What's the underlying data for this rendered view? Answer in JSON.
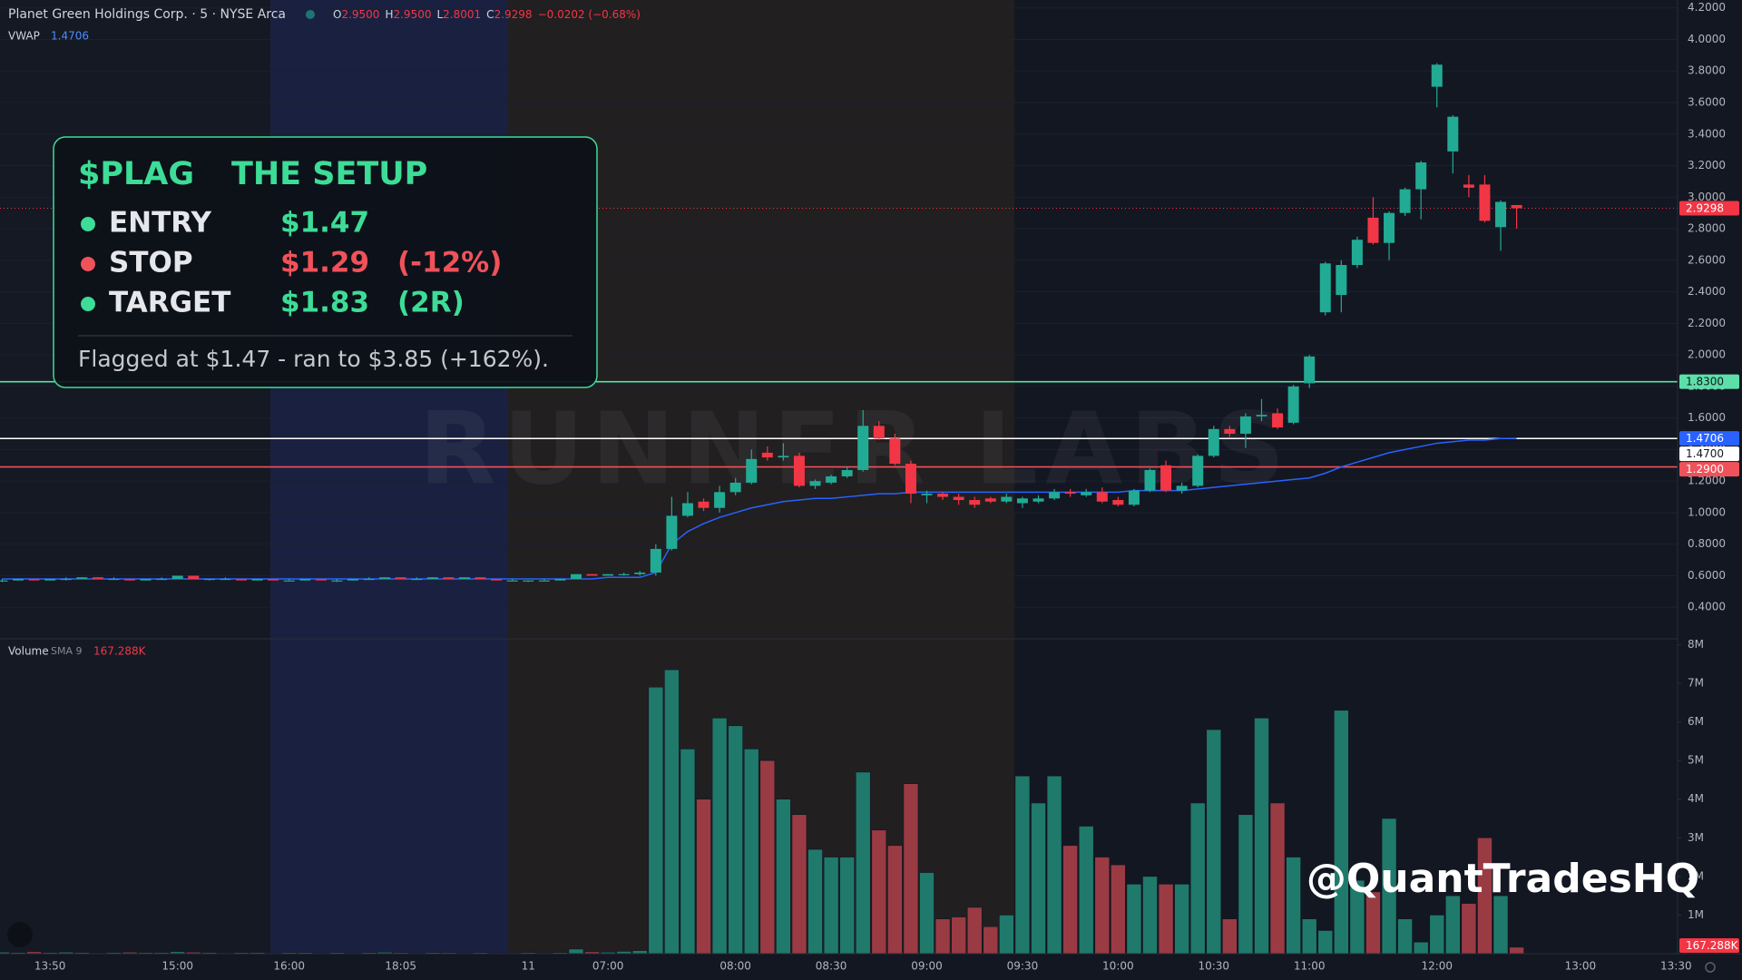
{
  "header": {
    "title": "Planet Green Holdings Corp. · 5 · NYSE Arca",
    "ohlc": [
      {
        "key": "O",
        "value": "2.9500"
      },
      {
        "key": "H",
        "value": "2.9500"
      },
      {
        "key": "L",
        "value": "2.8001"
      },
      {
        "key": "C",
        "value": "2.9298"
      }
    ],
    "change": "−0.0202 (−0.68%)"
  },
  "overlay": {
    "title": "$PLAG",
    "subtitle": "THE SETUP",
    "rows": [
      {
        "label": "ENTRY",
        "value": "$1.47",
        "color": "#3ddc97"
      },
      {
        "label": "STOP",
        "value": "$1.29",
        "note": "(-12%)",
        "color": "#f0525a"
      },
      {
        "label": "TARGET",
        "value": "$1.83",
        "note": "(2R)",
        "color": "#3ddc97"
      }
    ],
    "footer": "Flagged at $1.47 - ran to $3.85 (+162%)."
  },
  "watermark": "RUNNER LABS",
  "handle": "@QuantTradesHQ",
  "chart_data": [
    {
      "type": "candlestick",
      "up_color": "#22ab94",
      "down_color": "#f23645",
      "categories": [
        null,
        null,
        null,
        "13:50",
        null,
        null,
        null,
        null,
        null,
        null,
        null,
        "15:00",
        null,
        null,
        null,
        null,
        null,
        null,
        "16:00",
        null,
        null,
        null,
        null,
        null,
        null,
        "18:05",
        null,
        null,
        null,
        null,
        null,
        null,
        null,
        "11",
        null,
        null,
        null,
        null,
        "07:00",
        null,
        null,
        null,
        null,
        null,
        null,
        null,
        "08:00",
        null,
        null,
        null,
        null,
        null,
        "08:30",
        null,
        null,
        null,
        null,
        null,
        "09:00",
        null,
        null,
        null,
        null,
        null,
        "09:30",
        null,
        null,
        null,
        null,
        null,
        "10:00",
        null,
        null,
        null,
        null,
        null,
        "10:30",
        null,
        null,
        null,
        null,
        null,
        "11:00",
        null,
        null,
        null,
        null,
        null,
        null,
        null,
        "12:00",
        null,
        null,
        null,
        null,
        null,
        null,
        null,
        null,
        "13:00",
        null,
        null,
        null,
        null,
        null,
        "13:30"
      ],
      "open": [
        0.57,
        0.57,
        0.58,
        0.57,
        0.58,
        0.58,
        0.59,
        0.58,
        0.58,
        0.57,
        0.58,
        0.58,
        0.6,
        0.58,
        0.58,
        0.58,
        0.57,
        0.58,
        0.57,
        0.57,
        0.58,
        0.57,
        0.57,
        0.58,
        0.58,
        0.59,
        0.58,
        0.58,
        0.59,
        0.58,
        0.59,
        0.58,
        0.57,
        0.57,
        0.57,
        0.57,
        0.58,
        0.61,
        0.6,
        0.61,
        0.61,
        0.62,
        0.77,
        0.98,
        1.07,
        1.03,
        1.13,
        1.19,
        1.38,
        1.35,
        1.36,
        1.17,
        1.19,
        1.23,
        1.27,
        1.55,
        1.47,
        1.31,
        1.11,
        1.12,
        1.1,
        1.08,
        1.09,
        1.07,
        1.06,
        1.07,
        1.09,
        1.13,
        1.11,
        1.13,
        1.08,
        1.05,
        1.14,
        1.3,
        1.14,
        1.17,
        1.36,
        1.53,
        1.5,
        1.61,
        1.63,
        1.57,
        1.82,
        2.27,
        2.38,
        2.57,
        2.87,
        2.71,
        2.9,
        3.05,
        3.7,
        3.29,
        3.08,
        3.08,
        2.81,
        2.95,
        null,
        null,
        null,
        null,
        null,
        null,
        null,
        null,
        null,
        null
      ],
      "high": [
        0.58,
        0.58,
        0.58,
        0.58,
        0.59,
        0.59,
        0.59,
        0.59,
        0.58,
        0.58,
        0.59,
        0.6,
        0.6,
        0.58,
        0.59,
        0.58,
        0.58,
        0.58,
        0.58,
        0.58,
        0.58,
        0.58,
        0.58,
        0.59,
        0.59,
        0.59,
        0.59,
        0.59,
        0.59,
        0.59,
        0.59,
        0.58,
        0.58,
        0.57,
        0.58,
        0.58,
        0.61,
        0.61,
        0.61,
        0.62,
        0.63,
        0.8,
        1.1,
        1.13,
        1.09,
        1.17,
        1.22,
        1.4,
        1.42,
        1.44,
        1.38,
        1.21,
        1.24,
        1.29,
        1.65,
        1.58,
        1.5,
        1.33,
        1.14,
        1.13,
        1.12,
        1.1,
        1.1,
        1.12,
        1.1,
        1.11,
        1.15,
        1.15,
        1.15,
        1.16,
        1.1,
        1.15,
        1.28,
        1.33,
        1.19,
        1.37,
        1.55,
        1.55,
        1.63,
        1.72,
        1.66,
        1.81,
        2.0,
        2.59,
        2.6,
        2.75,
        3.0,
        2.91,
        3.06,
        3.23,
        3.85,
        3.52,
        3.14,
        3.14,
        2.98,
        2.95,
        null,
        null,
        null,
        null,
        null,
        null,
        null,
        null,
        null,
        null
      ],
      "low": [
        0.56,
        0.57,
        0.57,
        0.57,
        0.57,
        0.58,
        0.58,
        0.58,
        0.57,
        0.57,
        0.58,
        0.58,
        0.58,
        0.57,
        0.58,
        0.57,
        0.57,
        0.57,
        0.57,
        0.57,
        0.57,
        0.56,
        0.57,
        0.58,
        0.58,
        0.58,
        0.58,
        0.58,
        0.58,
        0.58,
        0.58,
        0.57,
        0.57,
        0.56,
        0.57,
        0.57,
        0.58,
        0.6,
        0.6,
        0.6,
        0.6,
        0.6,
        0.76,
        0.97,
        1.01,
        1.0,
        1.11,
        1.18,
        1.33,
        1.33,
        1.16,
        1.15,
        1.18,
        1.22,
        1.26,
        1.46,
        1.3,
        1.06,
        1.06,
        1.08,
        1.05,
        1.03,
        1.06,
        1.06,
        1.03,
        1.06,
        1.08,
        1.1,
        1.1,
        1.06,
        1.04,
        1.04,
        1.13,
        1.13,
        1.12,
        1.16,
        1.35,
        1.48,
        1.41,
        1.58,
        1.53,
        1.56,
        1.79,
        2.25,
        2.27,
        2.55,
        2.7,
        2.6,
        2.88,
        2.86,
        3.57,
        3.15,
        3.0,
        2.84,
        2.66,
        2.8001,
        null,
        null,
        null,
        null,
        null,
        null,
        null,
        null,
        null,
        null
      ],
      "close": [
        0.57,
        0.58,
        0.57,
        0.58,
        0.58,
        0.59,
        0.58,
        0.58,
        0.57,
        0.58,
        0.58,
        0.6,
        0.58,
        0.58,
        0.58,
        0.57,
        0.58,
        0.57,
        0.57,
        0.58,
        0.57,
        0.57,
        0.58,
        0.58,
        0.59,
        0.58,
        0.58,
        0.59,
        0.58,
        0.59,
        0.58,
        0.57,
        0.57,
        0.57,
        0.57,
        0.58,
        0.61,
        0.6,
        0.61,
        0.61,
        0.62,
        0.77,
        0.98,
        1.06,
        1.03,
        1.13,
        1.19,
        1.34,
        1.35,
        1.36,
        1.17,
        1.2,
        1.23,
        1.27,
        1.55,
        1.47,
        1.31,
        1.12,
        1.12,
        1.1,
        1.08,
        1.05,
        1.07,
        1.1,
        1.09,
        1.09,
        1.13,
        1.12,
        1.13,
        1.07,
        1.05,
        1.14,
        1.27,
        1.14,
        1.17,
        1.36,
        1.53,
        1.5,
        1.61,
        1.62,
        1.54,
        1.8,
        1.99,
        2.58,
        2.57,
        2.73,
        2.71,
        2.9,
        3.05,
        3.22,
        3.84,
        3.51,
        3.06,
        2.85,
        2.97,
        2.9298,
        null,
        null,
        null,
        null,
        null,
        null,
        null,
        null,
        null,
        null
      ],
      "vwap": {
        "name": "VWAP",
        "label": "1.4706",
        "color": "#2962ff",
        "values": [
          0.58,
          0.58,
          0.58,
          0.58,
          0.58,
          0.58,
          0.58,
          0.58,
          0.58,
          0.58,
          0.58,
          0.58,
          0.58,
          0.58,
          0.58,
          0.58,
          0.58,
          0.58,
          0.58,
          0.58,
          0.58,
          0.58,
          0.58,
          0.58,
          0.58,
          0.58,
          0.58,
          0.58,
          0.58,
          0.58,
          0.58,
          0.58,
          0.58,
          0.58,
          0.58,
          0.58,
          0.58,
          0.58,
          0.59,
          0.59,
          0.59,
          0.62,
          0.8,
          0.88,
          0.93,
          0.97,
          1.0,
          1.03,
          1.05,
          1.07,
          1.08,
          1.09,
          1.09,
          1.1,
          1.11,
          1.12,
          1.12,
          1.13,
          1.13,
          1.13,
          1.13,
          1.13,
          1.13,
          1.13,
          1.13,
          1.13,
          1.13,
          1.13,
          1.13,
          1.13,
          1.13,
          1.14,
          1.14,
          1.14,
          1.14,
          1.15,
          1.16,
          1.17,
          1.18,
          1.19,
          1.2,
          1.21,
          1.22,
          1.25,
          1.29,
          1.32,
          1.35,
          1.38,
          1.4,
          1.42,
          1.44,
          1.45,
          1.46,
          1.46,
          1.47,
          1.4706,
          null,
          null,
          null,
          null,
          null,
          null,
          null,
          null,
          null,
          null
        ]
      },
      "levels": [
        {
          "value": 1.83,
          "label": "1.8300",
          "color": "#5ce0a8"
        },
        {
          "value": 1.47,
          "label": "1.4700",
          "color": "#ffffff"
        },
        {
          "value": 1.29,
          "label": "1.2900",
          "color": "#f0525a"
        }
      ],
      "last_price": {
        "value": 2.9298,
        "label": "2.9298",
        "color": "#f23645"
      },
      "ylim": [
        0.2,
        4.25
      ],
      "yticks": [
        {
          "value": 4.2,
          "label": "4.2000"
        },
        {
          "value": 4.0,
          "label": "4.0000"
        },
        {
          "value": 3.8,
          "label": "3.8000"
        },
        {
          "value": 3.6,
          "label": "3.6000"
        },
        {
          "value": 3.4,
          "label": "3.4000"
        },
        {
          "value": 3.2,
          "label": "3.2000"
        },
        {
          "value": 3.0,
          "label": "3.0000"
        },
        {
          "value": 2.8,
          "label": "2.8000"
        },
        {
          "value": 2.6,
          "label": "2.6000"
        },
        {
          "value": 2.4,
          "label": "2.4000"
        },
        {
          "value": 2.2,
          "label": "2.2000"
        },
        {
          "value": 2.0,
          "label": "2.0000"
        },
        {
          "value": 1.8,
          "label": "1.8000"
        },
        {
          "value": 1.6,
          "label": "1.6000"
        },
        {
          "value": 1.4,
          "label": "1.4000"
        },
        {
          "value": 1.2,
          "label": "1.2000"
        },
        {
          "value": 1.0,
          "label": "1.0000"
        },
        {
          "value": 0.8,
          "label": "0.8000"
        },
        {
          "value": 0.6,
          "label": "0.6000"
        },
        {
          "value": 0.4,
          "label": "0.4000"
        }
      ],
      "grid": true
    },
    {
      "type": "bar",
      "title": "Volume",
      "subtitle": "SMA 9",
      "up_color": "#1f7a6c",
      "down_color": "#9a3b44",
      "values": [
        0.04,
        0.03,
        0.05,
        0.03,
        0.04,
        0.03,
        0.02,
        0.03,
        0.04,
        0.03,
        0.03,
        0.05,
        0.04,
        0.03,
        0.02,
        0.03,
        0.03,
        0.02,
        0.03,
        0.03,
        0.02,
        0.03,
        0.02,
        0.03,
        0.04,
        0.03,
        0.02,
        0.03,
        0.03,
        0.02,
        0.03,
        0.02,
        0.02,
        0.03,
        0.02,
        0.03,
        0.12,
        0.05,
        0.04,
        0.06,
        0.08,
        6.9,
        7.35,
        5.3,
        4.0,
        6.1,
        5.9,
        5.3,
        5.0,
        4.0,
        3.6,
        2.7,
        2.5,
        2.5,
        4.7,
        3.2,
        2.8,
        4.4,
        2.1,
        0.9,
        0.95,
        1.2,
        0.7,
        1.0,
        4.6,
        3.9,
        4.6,
        2.8,
        3.3,
        2.5,
        2.3,
        1.8,
        2.0,
        1.8,
        1.8,
        3.9,
        5.8,
        0.9,
        3.6,
        6.1,
        3.9,
        2.5,
        0.9,
        0.6,
        6.3,
        1.9,
        1.6,
        3.5,
        0.9,
        0.3,
        1.0,
        1.5,
        1.3,
        3.0,
        1.5,
        0.167288,
        null,
        null,
        null,
        null,
        null,
        null,
        null,
        null,
        null,
        null
      ],
      "value_labels": [
        null,
        null,
        null,
        null,
        null,
        null,
        null,
        null,
        null,
        null,
        null,
        null,
        null,
        null,
        null,
        null,
        null,
        null,
        null,
        null,
        null,
        null,
        null,
        null,
        null,
        null,
        null,
        null,
        null,
        null,
        null,
        null,
        null,
        null,
        null,
        null,
        null,
        null,
        null,
        null,
        null,
        null,
        null,
        null,
        null,
        null,
        null,
        null,
        null,
        null,
        null,
        null,
        null,
        null,
        null,
        null,
        null,
        null,
        null,
        null,
        null,
        null,
        null,
        null,
        null,
        null,
        null,
        null,
        null,
        null,
        null,
        null,
        null,
        null,
        null,
        null,
        null,
        null,
        null,
        null,
        null,
        null,
        null,
        null,
        null,
        null,
        null,
        null,
        null,
        null,
        null,
        null,
        null,
        null,
        null,
        "167.288K",
        null,
        null,
        null,
        null,
        null,
        null,
        null,
        null,
        null,
        null
      ],
      "ylim": [
        0,
        8.15
      ],
      "yticks": [
        {
          "value": 1,
          "label": "1M"
        },
        {
          "value": 2,
          "label": "2M"
        },
        {
          "value": 3,
          "label": "3M"
        },
        {
          "value": 4,
          "label": "4M"
        },
        {
          "value": 5,
          "label": "5M"
        },
        {
          "value": 6,
          "label": "6M"
        },
        {
          "value": 7,
          "label": "7M"
        },
        {
          "value": 8,
          "label": "8M"
        }
      ]
    }
  ]
}
